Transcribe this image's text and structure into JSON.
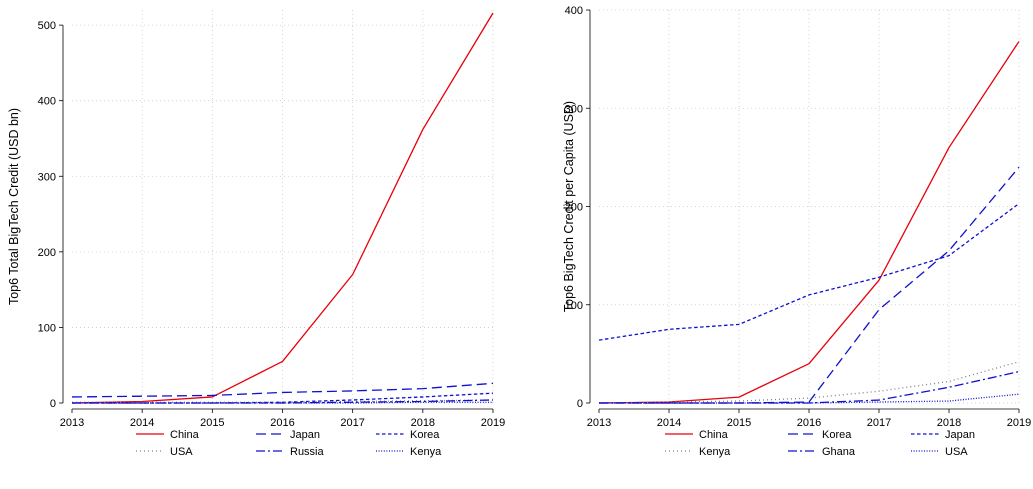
{
  "chart_data": [
    {
      "type": "line",
      "title": "",
      "xlabel": "",
      "ylabel": "Top6 Total BigTech Credit (USD bn)",
      "x": [
        2013,
        2014,
        2015,
        2016,
        2017,
        2018,
        2019
      ],
      "x_tick_labels": [
        "2013",
        "2014",
        "2015",
        "2016",
        "2017",
        "2018",
        "2019"
      ],
      "xlim": [
        2013,
        2019
      ],
      "ylim": [
        0,
        520
      ],
      "y_ticks": [
        0,
        100,
        200,
        300,
        400,
        500
      ],
      "y_tick_labels": [
        "0",
        "100",
        "200",
        "300",
        "400",
        "500"
      ],
      "grid": true,
      "legend_position": "bottom",
      "series": [
        {
          "name": "China",
          "color": "#e8000b",
          "dash": "solid",
          "values": [
            0,
            2,
            8,
            55,
            170,
            362,
            516
          ]
        },
        {
          "name": "Japan",
          "color": "#1010d0",
          "dash": "longdash",
          "values": [
            8,
            9,
            10,
            14,
            16,
            19,
            26
          ]
        },
        {
          "name": "Korea",
          "color": "#1010d0",
          "dash": "dash",
          "values": [
            0,
            0,
            0,
            1,
            4,
            8,
            13
          ]
        },
        {
          "name": "USA",
          "color": "#808080",
          "dash": "dot",
          "values": [
            1,
            1,
            1,
            1,
            2,
            3,
            4
          ]
        },
        {
          "name": "Russia",
          "color": "#1010d0",
          "dash": "dashdot",
          "values": [
            0,
            0,
            0,
            0,
            1,
            2,
            4
          ]
        },
        {
          "name": "Kenya",
          "color": "#1010d0",
          "dash": "finedot",
          "values": [
            0,
            0,
            0,
            0,
            0,
            1,
            1
          ]
        }
      ]
    },
    {
      "type": "line",
      "title": "",
      "xlabel": "",
      "ylabel": "Top6 BigTech Credit per Capita (USD)",
      "x": [
        2013,
        2014,
        2015,
        2016,
        2017,
        2018,
        2019
      ],
      "x_tick_labels": [
        "2013",
        "2014",
        "2015",
        "2016",
        "2017",
        "2018",
        "2019"
      ],
      "xlim": [
        2013,
        2019
      ],
      "ylim": [
        0,
        400
      ],
      "y_ticks": [
        0,
        100,
        200,
        300,
        400
      ],
      "y_tick_labels": [
        "0",
        "100",
        "200",
        "300",
        "400"
      ],
      "grid": true,
      "legend_position": "bottom",
      "series": [
        {
          "name": "China",
          "color": "#e8000b",
          "dash": "solid",
          "values": [
            0,
            1,
            6,
            40,
            125,
            260,
            368
          ]
        },
        {
          "name": "Korea",
          "color": "#1010d0",
          "dash": "longdash",
          "values": [
            0,
            0,
            0,
            1,
            95,
            155,
            240
          ]
        },
        {
          "name": "Japan",
          "color": "#1010d0",
          "dash": "dash",
          "values": [
            64,
            75,
            80,
            110,
            128,
            150,
            203
          ]
        },
        {
          "name": "Kenya",
          "color": "#808080",
          "dash": "dot",
          "values": [
            0,
            1,
            2,
            5,
            12,
            22,
            42
          ]
        },
        {
          "name": "Ghana",
          "color": "#1010d0",
          "dash": "dashdot",
          "values": [
            0,
            0,
            0,
            0,
            3,
            16,
            32
          ]
        },
        {
          "name": "USA",
          "color": "#1010d0",
          "dash": "finedot",
          "values": [
            0,
            0,
            0,
            0,
            1,
            2,
            9
          ]
        }
      ]
    }
  ]
}
